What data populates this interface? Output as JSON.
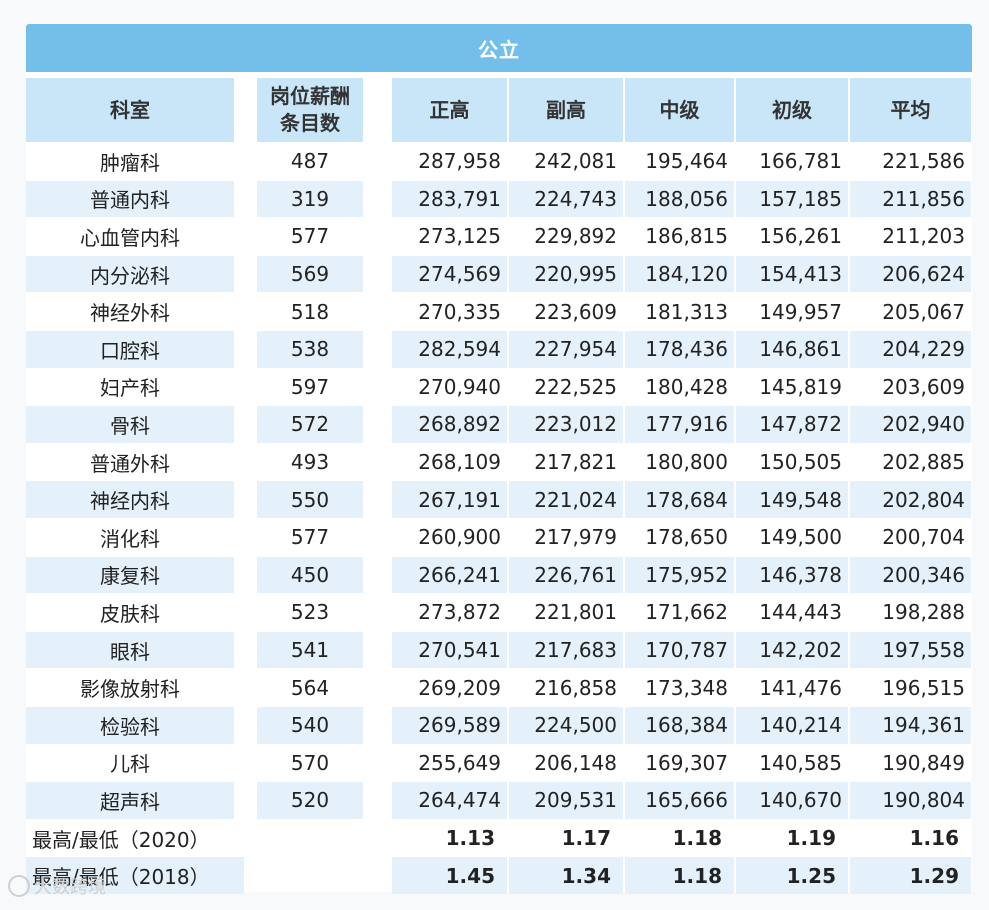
{
  "title": "公立",
  "headers": {
    "department": "科室",
    "count": "岗位薪酬条目数",
    "levels": [
      "正高",
      "副高",
      "中级",
      "初级",
      "平均"
    ]
  },
  "rows": [
    {
      "dept": "肿瘤科",
      "count": "487",
      "values": [
        "287,958",
        "242,081",
        "195,464",
        "166,781",
        "221,586"
      ]
    },
    {
      "dept": "普通内科",
      "count": "319",
      "values": [
        "283,791",
        "224,743",
        "188,056",
        "157,185",
        "211,856"
      ]
    },
    {
      "dept": "心血管内科",
      "count": "577",
      "values": [
        "273,125",
        "229,892",
        "186,815",
        "156,261",
        "211,203"
      ]
    },
    {
      "dept": "内分泌科",
      "count": "569",
      "values": [
        "274,569",
        "220,995",
        "184,120",
        "154,413",
        "206,624"
      ]
    },
    {
      "dept": "神经外科",
      "count": "518",
      "values": [
        "270,335",
        "223,609",
        "181,313",
        "149,957",
        "205,067"
      ]
    },
    {
      "dept": "口腔科",
      "count": "538",
      "values": [
        "282,594",
        "227,954",
        "178,436",
        "146,861",
        "204,229"
      ]
    },
    {
      "dept": "妇产科",
      "count": "597",
      "values": [
        "270,940",
        "222,525",
        "180,428",
        "145,819",
        "203,609"
      ]
    },
    {
      "dept": "骨科",
      "count": "572",
      "values": [
        "268,892",
        "223,012",
        "177,916",
        "147,872",
        "202,940"
      ]
    },
    {
      "dept": "普通外科",
      "count": "493",
      "values": [
        "268,109",
        "217,821",
        "180,800",
        "150,505",
        "202,885"
      ]
    },
    {
      "dept": "神经内科",
      "count": "550",
      "values": [
        "267,191",
        "221,024",
        "178,684",
        "149,548",
        "202,804"
      ]
    },
    {
      "dept": "消化科",
      "count": "577",
      "values": [
        "260,900",
        "217,979",
        "178,650",
        "149,500",
        "200,704"
      ]
    },
    {
      "dept": "康复科",
      "count": "450",
      "values": [
        "266,241",
        "226,761",
        "175,952",
        "146,378",
        "200,346"
      ]
    },
    {
      "dept": "皮肤科",
      "count": "523",
      "values": [
        "273,872",
        "221,801",
        "171,662",
        "144,443",
        "198,288"
      ]
    },
    {
      "dept": "眼科",
      "count": "541",
      "values": [
        "270,541",
        "217,683",
        "170,787",
        "142,202",
        "197,558"
      ]
    },
    {
      "dept": "影像放射科",
      "count": "564",
      "values": [
        "269,209",
        "216,858",
        "173,348",
        "141,476",
        "196,515"
      ]
    },
    {
      "dept": "检验科",
      "count": "540",
      "values": [
        "269,589",
        "224,500",
        "168,384",
        "140,214",
        "194,361"
      ]
    },
    {
      "dept": "儿科",
      "count": "570",
      "values": [
        "255,649",
        "206,148",
        "169,307",
        "140,585",
        "190,849"
      ]
    },
    {
      "dept": "超声科",
      "count": "520",
      "values": [
        "264,474",
        "209,531",
        "165,666",
        "140,670",
        "190,804"
      ]
    }
  ],
  "ratios": [
    {
      "label": "最高/最低（2020）",
      "values": [
        "1.13",
        "1.17",
        "1.18",
        "1.19",
        "1.16"
      ]
    },
    {
      "label": "最高/最低（2018）",
      "values": [
        "1.45",
        "1.34",
        "1.18",
        "1.25",
        "1.29"
      ]
    }
  ],
  "watermark": "大数跨境",
  "colors": {
    "banner": "#74bfe9",
    "header": "#c9e6f8",
    "row_alt": "#e4f1fb",
    "row": "#ffffff"
  }
}
